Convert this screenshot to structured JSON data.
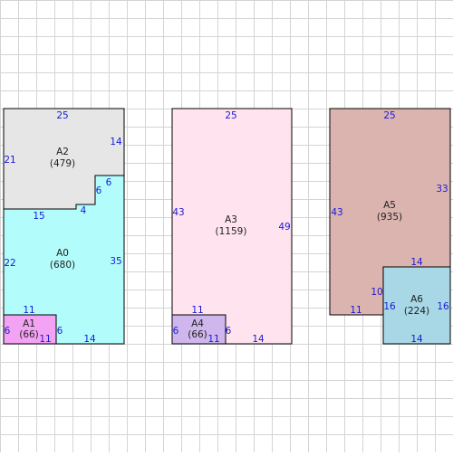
{
  "grid_color": "#d4d4d4",
  "dimension_color": "#1a1ad6",
  "areas": [
    {
      "id": "A0",
      "name": "A0",
      "value": "(680)",
      "fill": "#b2fdfc"
    },
    {
      "id": "A1",
      "name": "A1",
      "value": "(66)",
      "fill": "#f3a3f3"
    },
    {
      "id": "A2",
      "name": "A2",
      "value": "(479)",
      "fill": "#e6e6e6"
    },
    {
      "id": "A3",
      "name": "A3",
      "value": "(1159)",
      "fill": "#ffe3ee"
    },
    {
      "id": "A4",
      "name": "A4",
      "value": "(66)",
      "fill": "#cfb7ee"
    },
    {
      "id": "A5",
      "name": "A5",
      "value": "(935)",
      "fill": "#dbb4b0"
    },
    {
      "id": "A6",
      "name": "A6",
      "value": "(224)",
      "fill": "#a8d7e6"
    }
  ],
  "dimensions": {
    "a2_top": "25",
    "a2_left": "21",
    "a2_right": "14",
    "a2_step_right": "6",
    "a2_step_bottom": "4",
    "a0_top": "15",
    "a0_left": "22",
    "a0_right": "35",
    "a0_notch": "6",
    "a0_bottom": "14",
    "a1_top": "11",
    "a1_left": "6",
    "a1_right": "6",
    "a1_bottom": "11",
    "a3_top": "25",
    "a3_left": "43",
    "a3_right": "49",
    "a3_bottom": "14",
    "a4_top": "11",
    "a4_left": "6",
    "a4_right": "6",
    "a4_bottom": "11",
    "a5_top": "25",
    "a5_left": "43",
    "a5_right": "33",
    "a5_bottom": "11",
    "a5_inner": "10",
    "a6_top": "14",
    "a6_left": "16",
    "a6_right": "16",
    "a6_bottom": "14"
  }
}
